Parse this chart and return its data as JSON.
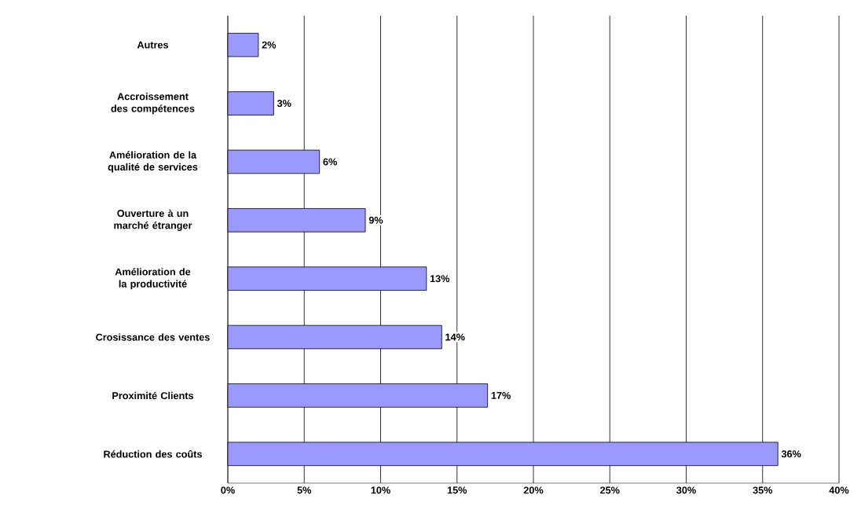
{
  "chart_data": {
    "type": "bar",
    "orientation": "horizontal",
    "categories": [
      "Autres",
      "Accroissement des compétences",
      "Amélioration de la qualité de services",
      "Ouverture à un marché étranger",
      "Amélioration de la productivité",
      "Crosissance des ventes",
      "Proximité Clients",
      "Réduction des coûts"
    ],
    "values": [
      2,
      3,
      6,
      9,
      13,
      14,
      17,
      36
    ],
    "value_labels": [
      "2%",
      "3%",
      "6%",
      "9%",
      "13%",
      "14%",
      "17%",
      "36%"
    ],
    "color": "#9999ff",
    "xlim": [
      0,
      40
    ],
    "xticks": [
      {
        "value": 0,
        "label": "0%"
      },
      {
        "value": 5,
        "label": "5%"
      },
      {
        "value": 10,
        "label": "10%"
      },
      {
        "value": 15,
        "label": "15%"
      },
      {
        "value": 20,
        "label": "20%"
      },
      {
        "value": 25,
        "label": "25%"
      },
      {
        "value": 30,
        "label": "30%"
      },
      {
        "value": 35,
        "label": "35%"
      },
      {
        "value": 40,
        "label": "40%"
      }
    ],
    "grid": "x"
  }
}
